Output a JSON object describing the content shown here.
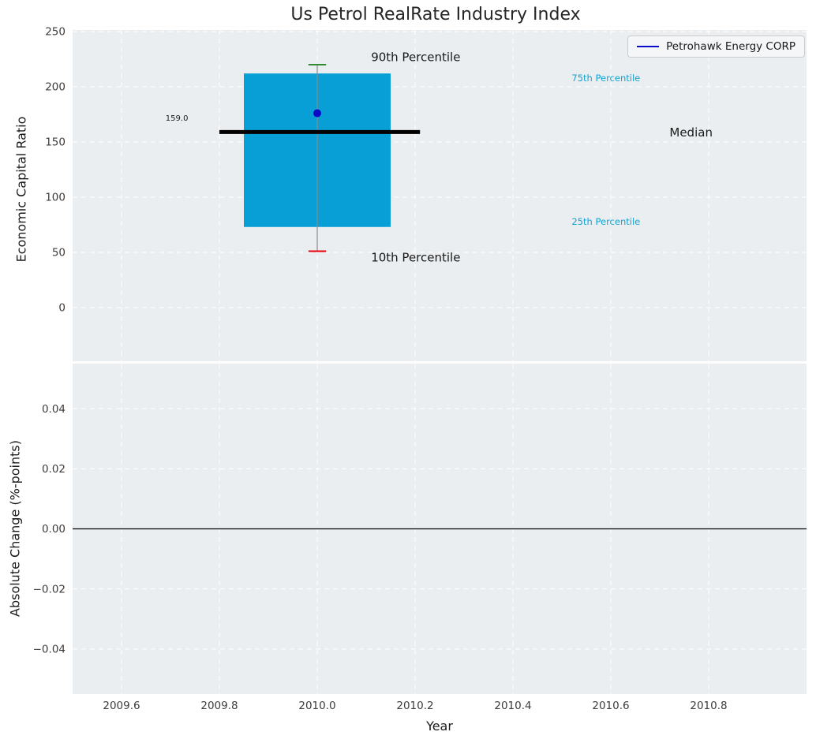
{
  "colors": {
    "page_bg": "#ffffff",
    "panel_bg": "#eaeef1",
    "grid": "#ffffff",
    "box_fill": "#089fd7",
    "median_line": "#000000",
    "company_marker": "#0a0ac8",
    "whisker": "#8a8a8a",
    "cap_high": "#2e8b2e",
    "cap_low": "#e8000b",
    "percentile_text": "#12a3d2",
    "tick_text": "#3c3c3c",
    "title_text": "#262626",
    "zero_line": "#000000"
  },
  "chart_data": {
    "type": "boxplot",
    "title": "Us Petrol RealRate Industry Index",
    "xlabel": "Year",
    "xlim": [
      2009.5,
      2011.0
    ],
    "xticks": [
      {
        "v": 2009.6,
        "label": "2009.6"
      },
      {
        "v": 2009.8,
        "label": "2009.8"
      },
      {
        "v": 2010.0,
        "label": "2010.0"
      },
      {
        "v": 2010.2,
        "label": "2010.2"
      },
      {
        "v": 2010.4,
        "label": "2010.4"
      },
      {
        "v": 2010.6,
        "label": "2010.6"
      },
      {
        "v": 2010.8,
        "label": "2010.8"
      }
    ],
    "legend": {
      "label": "Petrohawk Energy CORP",
      "location": "upper right"
    },
    "panels": [
      {
        "name": "economic-capital-ratio",
        "ylabel": "Economic Capital Ratio",
        "ylim": [
          -48.6,
          251.4
        ],
        "yticks": [
          {
            "v": 0,
            "label": "0"
          },
          {
            "v": 50,
            "label": "50"
          },
          {
            "v": 100,
            "label": "100"
          },
          {
            "v": 150,
            "label": "150"
          },
          {
            "v": 200,
            "label": "200"
          },
          {
            "v": 250,
            "label": "250"
          }
        ],
        "box": {
          "x": 2010.0,
          "box_width": 0.3,
          "q1": 73,
          "q3": 212,
          "median": 159,
          "median_x0": 2009.8,
          "median_x1": 2010.21,
          "whisker_low": 51,
          "whisker_high": 220,
          "cap_width": 0.036
        },
        "company_point": {
          "name": "Petrohawk Energy CORP",
          "x": 2010.0,
          "y": 176
        },
        "annotations": [
          {
            "name": "label-90th-percentile",
            "text": "90th Percentile",
            "x": 2010.11,
            "y": 227,
            "size": 15,
            "color": "#1a1a1a"
          },
          {
            "name": "label-10th-percentile",
            "text": "10th Percentile",
            "x": 2010.11,
            "y": 45.5,
            "size": 15,
            "color": "#1a1a1a"
          },
          {
            "name": "label-75th-percentile",
            "text": "75th Percentile",
            "x": 2010.52,
            "y": 208,
            "size": 11.5,
            "color": "#12a3d2"
          },
          {
            "name": "label-25th-percentile",
            "text": "25th Percentile",
            "x": 2010.52,
            "y": 78,
            "size": 11.5,
            "color": "#12a3d2"
          },
          {
            "name": "label-median",
            "text": "Median",
            "x": 2010.72,
            "y": 159,
            "size": 15,
            "color": "#1a1a1a"
          },
          {
            "name": "label-median-value",
            "text": "159.0",
            "x": 2009.69,
            "y": 172,
            "size": 10,
            "color": "#1a1a1a"
          }
        ]
      },
      {
        "name": "absolute-change",
        "ylabel": "Absolute Change (%-points)",
        "ylim": [
          -0.055,
          0.055
        ],
        "yticks": [
          {
            "v": -0.04,
            "label": "−0.04"
          },
          {
            "v": -0.02,
            "label": "−0.02"
          },
          {
            "v": 0,
            "label": "0.00"
          },
          {
            "v": 0.02,
            "label": "0.02"
          },
          {
            "v": 0.04,
            "label": "0.04"
          }
        ],
        "hline": 0
      }
    ]
  }
}
